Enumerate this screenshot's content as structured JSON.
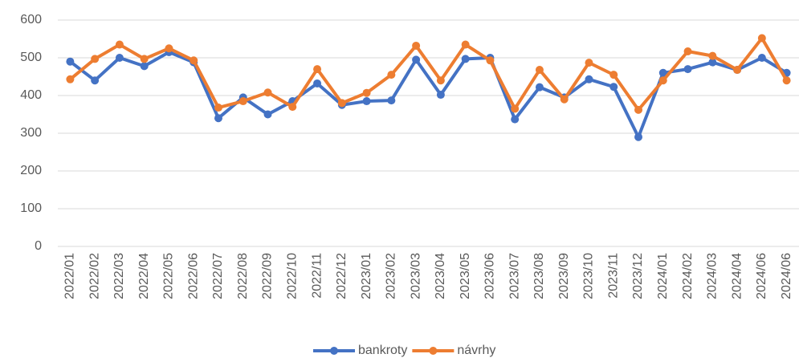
{
  "chart_data": {
    "type": "line",
    "categories": [
      "2022/01",
      "2022/02",
      "2022/03",
      "2022/04",
      "2022/05",
      "2022/06",
      "2022/07",
      "2022/08",
      "2022/09",
      "2022/10",
      "2022/11",
      "2022/12",
      "2023/01",
      "2023/02",
      "2023/03",
      "2023/04",
      "2023/05",
      "2023/06",
      "2023/07",
      "2023/08",
      "2023/09",
      "2023/10",
      "2023/11",
      "2023/12",
      "2024/01",
      "2024/02",
      "2024/03",
      "2024/04",
      "2024/06",
      "2024/06"
    ],
    "series": [
      {
        "name": "bankroty",
        "color": "#4472c4",
        "values": [
          490,
          440,
          500,
          478,
          515,
          488,
          340,
          395,
          350,
          385,
          432,
          375,
          385,
          387,
          495,
          402,
          497,
          500,
          337,
          422,
          395,
          443,
          423,
          290,
          460,
          470,
          488,
          468,
          500,
          460
        ]
      },
      {
        "name": "návrhy",
        "color": "#ed7d31",
        "values": [
          443,
          497,
          535,
          497,
          525,
          493,
          368,
          385,
          408,
          370,
          470,
          380,
          407,
          455,
          532,
          440,
          535,
          493,
          365,
          468,
          390,
          487,
          455,
          362,
          440,
          517,
          505,
          468,
          552,
          440
        ]
      }
    ],
    "ylim": [
      0,
      600
    ],
    "yticks": [
      0,
      100,
      200,
      300,
      400,
      500,
      600
    ],
    "grid": true,
    "legend": "bottom"
  }
}
